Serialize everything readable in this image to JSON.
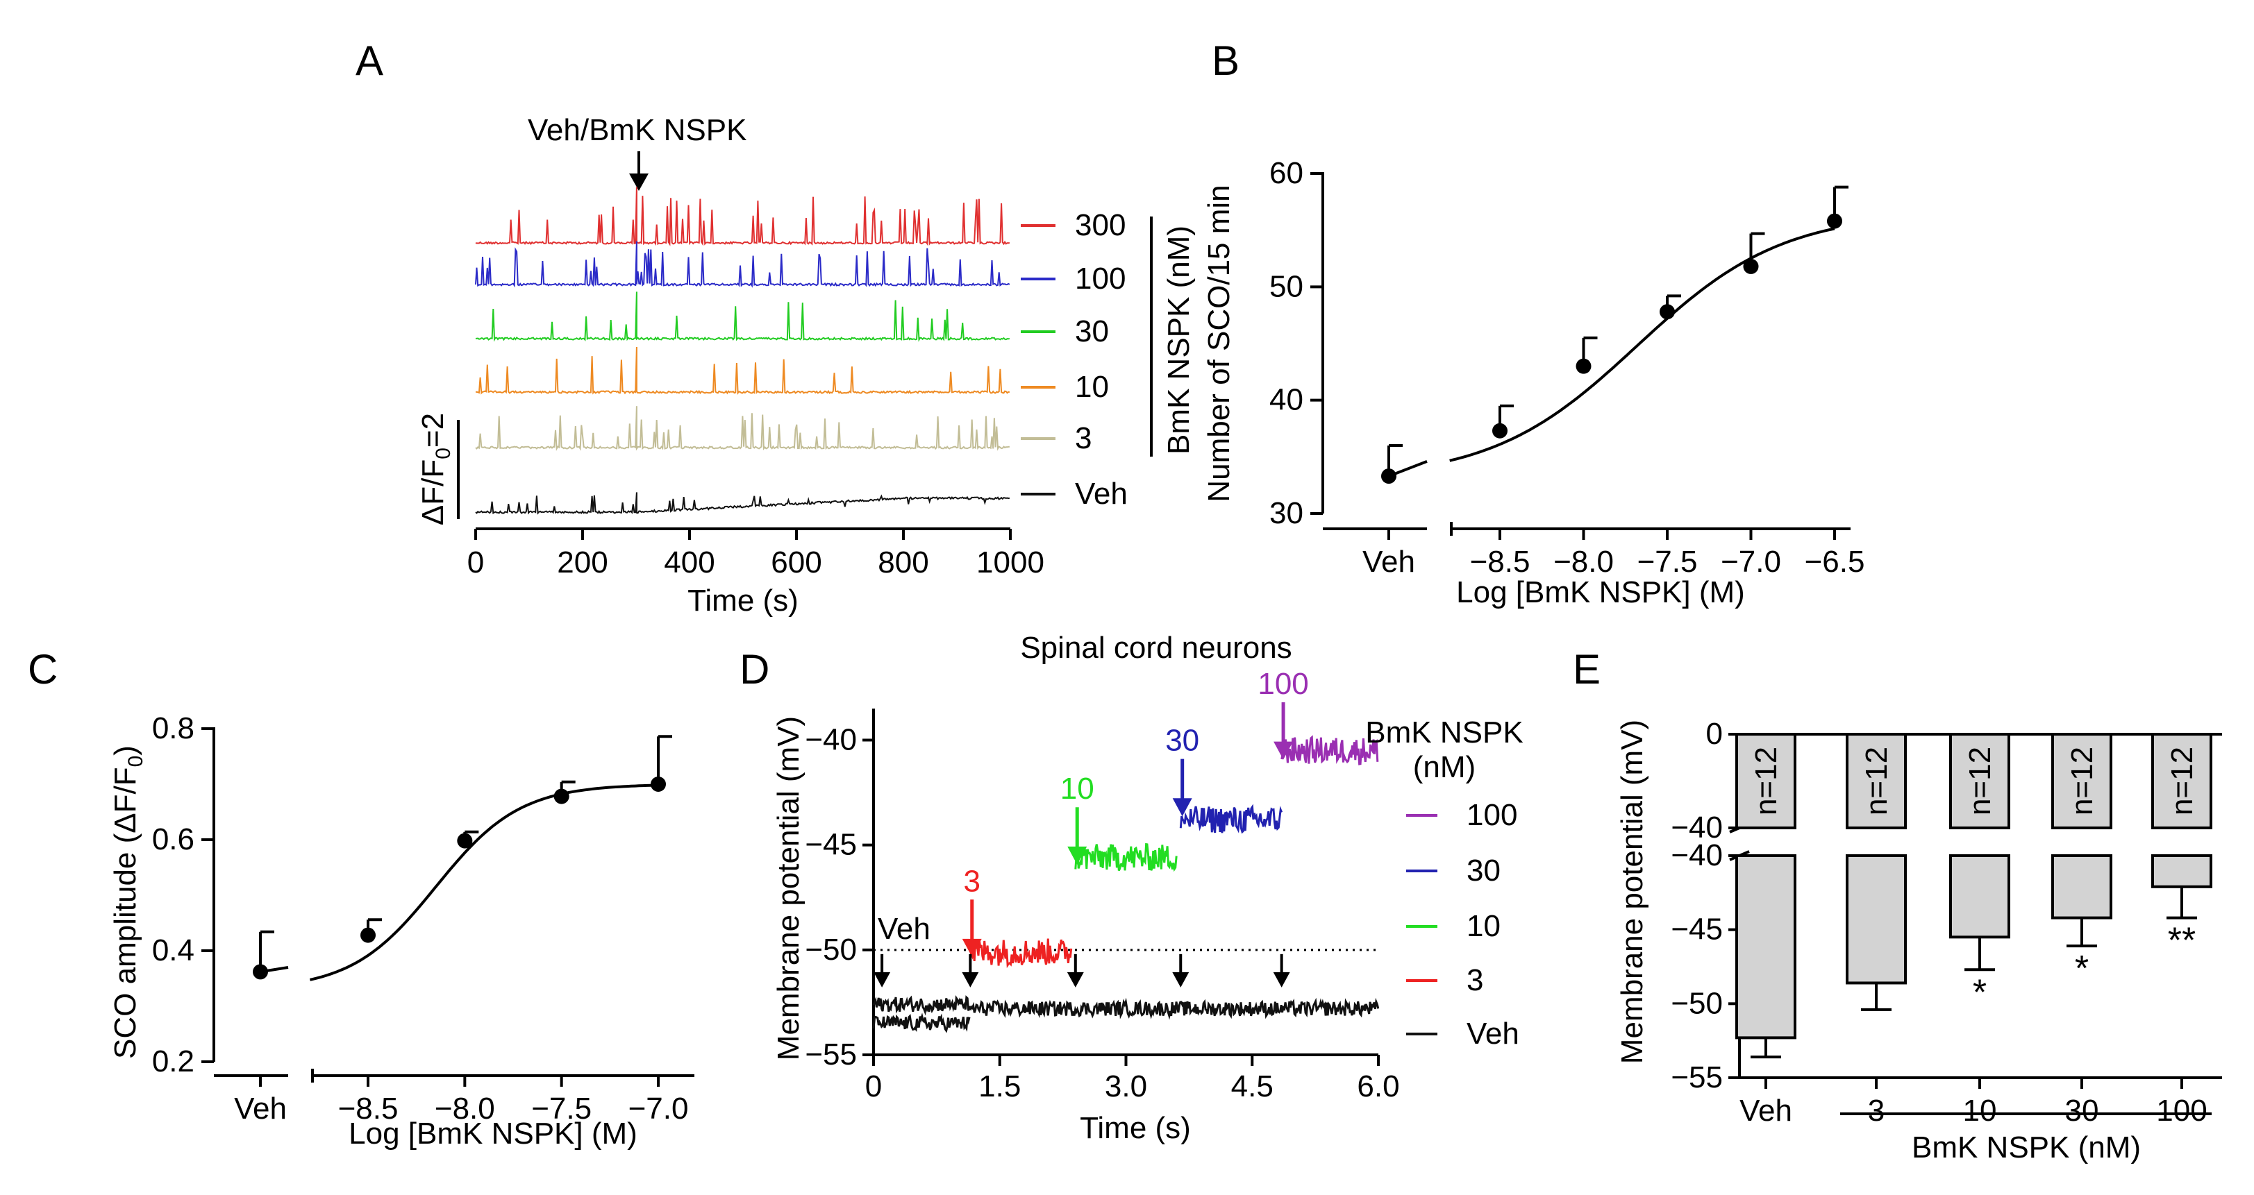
{
  "figure": {
    "panel_labels": [
      "A",
      "B",
      "C",
      "D",
      "E"
    ]
  },
  "chart_data": [
    {
      "panel": "A",
      "type": "line",
      "title": "",
      "annotation": "Veh/BmK NSPK",
      "xlabel": "Time (s)",
      "ylabel": "",
      "x_ticks": [
        0,
        200,
        400,
        600,
        800,
        1000
      ],
      "xlim": [
        0,
        1000
      ],
      "scale_bar_label": "ΔF/F0=2",
      "stimulus_time": 300,
      "group_label": "BmK NSPK (nM)",
      "series": [
        {
          "name": "300",
          "color": "#e03030"
        },
        {
          "name": "100",
          "color": "#2b2bc8"
        },
        {
          "name": "30",
          "color": "#22cc22"
        },
        {
          "name": "10",
          "color": "#ee8a22"
        },
        {
          "name": "3",
          "color": "#c2bd96"
        },
        {
          "name": "Veh",
          "color": "#111111"
        }
      ]
    },
    {
      "panel": "B",
      "type": "scatter",
      "title": "",
      "xlabel": "Log [BmK NSPK] (M)",
      "ylabel": "Number of SCO/15 min",
      "ylim": [
        30,
        60
      ],
      "y_ticks": [
        30,
        40,
        50,
        60
      ],
      "x_ticks": [
        -8.5,
        -8.0,
        -7.5,
        -7.0,
        -6.5
      ],
      "x_tick_labels": [
        "−8.5",
        "−8.0",
        "−7.5",
        "−7.0",
        "−6.5"
      ],
      "veh_label": "Veh",
      "veh": {
        "y": 33.3,
        "err": 2.7
      },
      "points": [
        {
          "x": -8.5,
          "y": 37.3,
          "err": 2.2
        },
        {
          "x": -8.0,
          "y": 43.0,
          "err": 2.5
        },
        {
          "x": -7.5,
          "y": 47.8,
          "err": 1.4
        },
        {
          "x": -7.0,
          "y": 51.8,
          "err": 2.9
        },
        {
          "x": -6.5,
          "y": 55.8,
          "err": 3.0
        }
      ],
      "fit": {
        "bottom": 33.0,
        "top": 56.6,
        "logec50": -7.68,
        "hill": 1.0
      }
    },
    {
      "panel": "C",
      "type": "scatter",
      "title": "",
      "xlabel": "Log [BmK NSPK] (M)",
      "ylabel": "SCO amplitude (ΔF/F0)",
      "ylim": [
        0.2,
        0.8
      ],
      "y_ticks": [
        0.2,
        0.4,
        0.6,
        0.8
      ],
      "x_ticks": [
        -8.5,
        -8.0,
        -7.5,
        -7.0
      ],
      "x_tick_labels": [
        "−8.5",
        "−8.0",
        "−7.5",
        "−7.0"
      ],
      "veh_label": "Veh",
      "veh": {
        "y": 0.362,
        "err": 0.072
      },
      "points": [
        {
          "x": -8.5,
          "y": 0.428,
          "err": 0.028
        },
        {
          "x": -8.0,
          "y": 0.598,
          "err": 0.016
        },
        {
          "x": -7.5,
          "y": 0.678,
          "err": 0.026
        },
        {
          "x": -7.0,
          "y": 0.7,
          "err": 0.086
        }
      ],
      "fit": {
        "bottom": 0.33,
        "top": 0.7,
        "logec50": -8.15,
        "hill": 2.0
      }
    },
    {
      "panel": "D",
      "type": "line",
      "title": "Spinal cord neurons",
      "xlabel": "Time (s)",
      "ylabel": "Membrane potential (mV)",
      "xlim": [
        0,
        6
      ],
      "ylim": [
        -55,
        -38
      ],
      "x_ticks": [
        0,
        1.5,
        3.0,
        4.5,
        6.0
      ],
      "x_tick_labels": [
        "0",
        "1.5",
        "3.0",
        "4.5",
        "6.0"
      ],
      "y_ticks": [
        -55,
        -50,
        -45,
        -40
      ],
      "y_tick_labels": [
        "−55",
        "−50",
        "−45",
        "−40"
      ],
      "baseline": -50,
      "start_label": "Veh",
      "legend_title": "BmK NSPK",
      "legend_unit": "(nM)",
      "series": [
        {
          "name": "100",
          "color": "#9a2fb2",
          "x0": 4.85,
          "x1": 6.0,
          "mean": -40.5,
          "arrow_y": -38.2
        },
        {
          "name": "30",
          "color": "#2222b0",
          "x0": 3.65,
          "x1": 4.85,
          "mean": -43.8,
          "arrow_y": -40.9
        },
        {
          "name": "10",
          "color": "#22dd22",
          "x0": 2.4,
          "x1": 3.6,
          "mean": -45.6,
          "arrow_y": -43.2
        },
        {
          "name": "3",
          "color": "#ee2222",
          "x0": 1.15,
          "x1": 2.35,
          "mean": -50.1,
          "arrow_y": -47.6
        },
        {
          "name": "Veh",
          "color": "#111111"
        }
      ],
      "veh_traces": [
        {
          "x0": 0.0,
          "x1": 1.15,
          "mean": -52.6
        },
        {
          "x0": 0.0,
          "x1": 1.15,
          "mean": -53.5
        },
        {
          "x0": 1.15,
          "x1": 6.0,
          "mean": -52.8
        }
      ],
      "arrow_times": [
        0.1,
        1.15,
        2.4,
        3.65,
        4.85
      ]
    },
    {
      "panel": "E",
      "type": "bar",
      "title": "",
      "xlabel": "BmK NSPK (nM)",
      "ylabel": "Membrane potential (mV)",
      "categories": [
        "Veh",
        "3",
        "10",
        "30",
        "100"
      ],
      "values": [
        -52.3,
        -48.6,
        -45.5,
        -44.2,
        -42.1
      ],
      "errors": [
        1.3,
        1.8,
        2.2,
        1.9,
        2.1
      ],
      "n_labels": [
        "n=12",
        "n=12",
        "n=12",
        "n=12",
        "n=12"
      ],
      "significance": [
        "",
        "",
        "*",
        "*",
        "**"
      ],
      "ylim_lower": [
        -55,
        -40
      ],
      "ylim_upper": [
        -40,
        0
      ],
      "y_ticks_lower": [
        -55,
        -50,
        -45,
        -40
      ],
      "y_tick_labels_lower": [
        "−55",
        "−50",
        "−45",
        "−40"
      ],
      "y_ticks_upper": [
        -40,
        0
      ],
      "y_tick_labels_upper": [
        "−40",
        "0"
      ]
    }
  ]
}
